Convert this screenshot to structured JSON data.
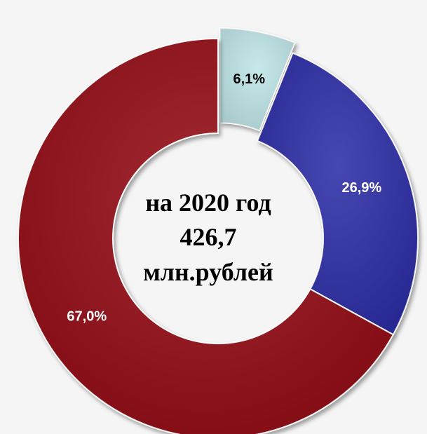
{
  "chart_data": {
    "type": "pie",
    "donut": true,
    "center_text": [
      "на 2020 год",
      "426,7",
      "млн.рублей"
    ],
    "slices": [
      {
        "value": 6.1,
        "label": "6,1%",
        "color": "#bfe6e8",
        "label_color": "#000000",
        "exploded": true
      },
      {
        "value": 26.9,
        "label": "26,9%",
        "color": "#2e2ea8",
        "label_color": "#ffffff",
        "exploded": false
      },
      {
        "value": 67.0,
        "label": "67,0%",
        "color": "#950d12",
        "label_color": "#ffffff",
        "exploded": false
      }
    ]
  },
  "colors": {
    "background": "#f5f5f5"
  }
}
